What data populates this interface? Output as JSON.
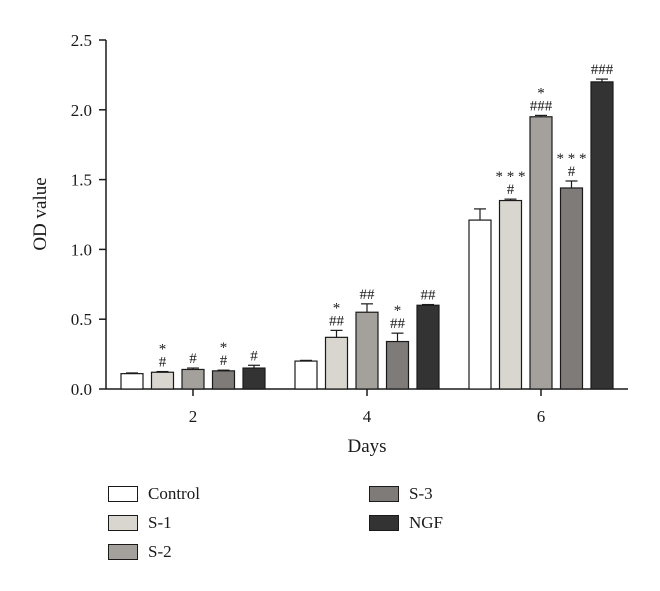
{
  "chart_data": {
    "type": "bar",
    "title": "",
    "xlabel": "Days",
    "ylabel": "OD value",
    "ylim": [
      0,
      2.5
    ],
    "yticks": [
      "0.0",
      "0.5",
      "1.0",
      "1.5",
      "2.0",
      "2.5"
    ],
    "categories": [
      "2",
      "4",
      "6"
    ],
    "grid": false,
    "legend_position": "bottom",
    "series": [
      {
        "name": "Control",
        "color": "#ffffff",
        "values": [
          0.11,
          0.2,
          1.21
        ],
        "errors": [
          0.005,
          0.005,
          0.08
        ],
        "annotations": [
          [],
          [],
          []
        ]
      },
      {
        "name": "S-1",
        "color": "#d9d5cf",
        "values": [
          0.12,
          0.37,
          1.35
        ],
        "errors": [
          0.005,
          0.05,
          0.01
        ],
        "annotations": [
          [
            "*",
            "#"
          ],
          [
            "*",
            "##"
          ],
          [
            "* * *",
            "#"
          ]
        ]
      },
      {
        "name": "S-2",
        "color": "#a4a09c",
        "values": [
          0.14,
          0.55,
          1.95
        ],
        "errors": [
          0.01,
          0.06,
          0.01
        ],
        "annotations": [
          [
            "#"
          ],
          [
            "##"
          ],
          [
            "*",
            "###"
          ]
        ]
      },
      {
        "name": "S-3",
        "color": "#7f7b78",
        "values": [
          0.13,
          0.34,
          1.44
        ],
        "errors": [
          0.005,
          0.06,
          0.05
        ],
        "annotations": [
          [
            "*",
            "#"
          ],
          [
            "*",
            "##"
          ],
          [
            "* * *",
            "#"
          ]
        ]
      },
      {
        "name": "NGF",
        "color": "#333333",
        "values": [
          0.15,
          0.6,
          2.2
        ],
        "errors": [
          0.02,
          0.005,
          0.02
        ],
        "annotations": [
          [
            "#"
          ],
          [
            "##"
          ],
          [
            "###"
          ]
        ]
      }
    ]
  }
}
